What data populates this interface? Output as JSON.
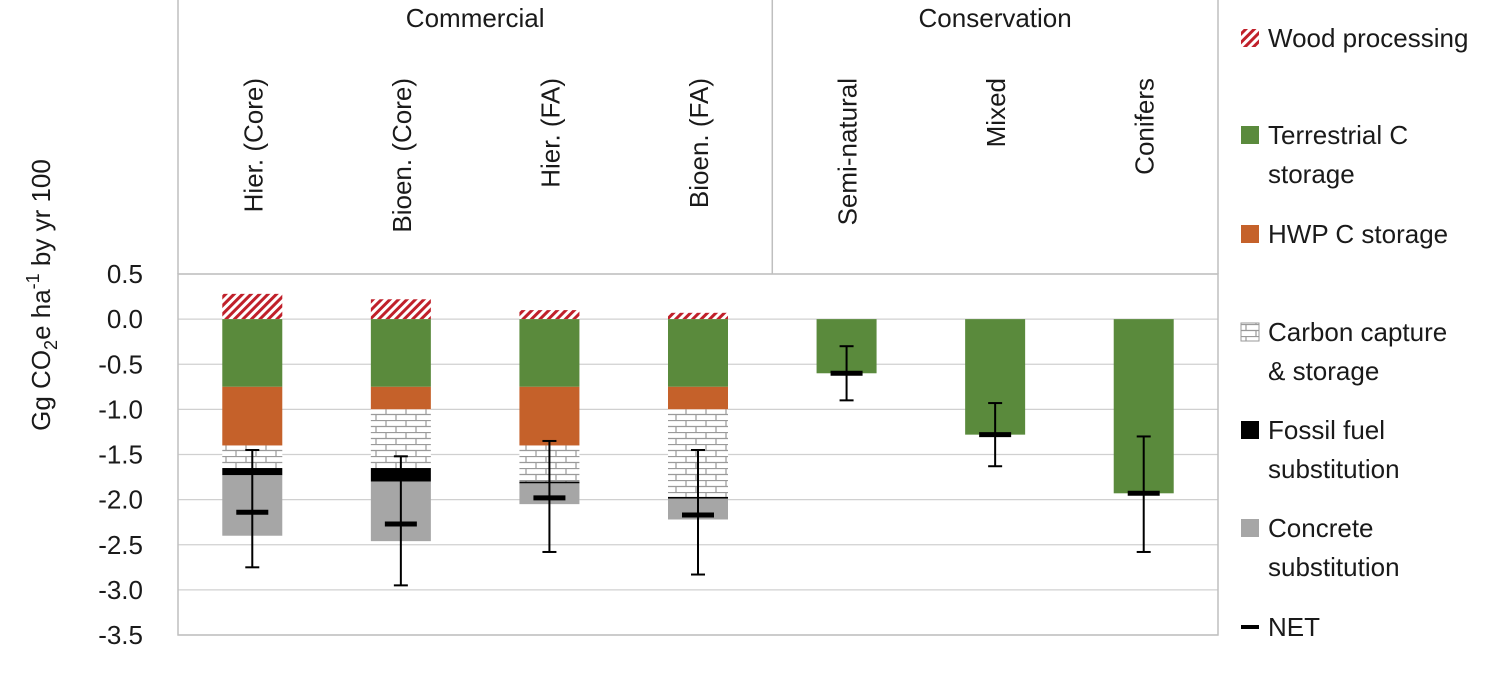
{
  "chart_data": {
    "type": "bar",
    "stacked": true,
    "ylabel": {
      "main": "Gg CO",
      "sub": "2",
      "mid": "e ha",
      "sup": "-1",
      "tail": " by yr 100"
    },
    "ylim": [
      -3.5,
      0.5
    ],
    "yticks": [
      "0.5",
      "0.0",
      "-0.5",
      "-1.0",
      "-1.5",
      "-2.0",
      "-2.5",
      "-3.0",
      "-3.5"
    ],
    "grid": true,
    "groups": [
      {
        "label": "Commercial",
        "categories": [
          0,
          1,
          2,
          3
        ]
      },
      {
        "label": "Conservation",
        "categories": [
          4,
          5,
          6
        ]
      }
    ],
    "categories": [
      "Hier. (Core)",
      "Bioen. (Core)",
      "Hier. (FA)",
      "Bioen. (FA)",
      "Semi-natural",
      "Mixed",
      "Conifers"
    ],
    "series": [
      {
        "name": "Wood processing",
        "color": "#c0202a",
        "pattern": "hatch",
        "values": [
          0.28,
          0.22,
          0.1,
          0.07,
          0,
          0,
          0
        ]
      },
      {
        "name": "Terrestrial C storage",
        "color": "#5a8a3c",
        "pattern": "solid",
        "values": [
          -0.75,
          -0.75,
          -0.75,
          -0.75,
          -0.6,
          -1.28,
          -1.93
        ]
      },
      {
        "name": "HWP C storage",
        "color": "#c5612a",
        "pattern": "solid",
        "values": [
          -0.65,
          -0.25,
          -0.65,
          -0.25,
          0,
          0,
          0
        ]
      },
      {
        "name": "Carbon capture & storage",
        "color": "#9a9a9a",
        "pattern": "brick",
        "values": [
          -0.25,
          -0.65,
          -0.4,
          -0.97,
          0,
          0,
          0
        ]
      },
      {
        "name": "Fossil fuel substitution",
        "color": "#000000",
        "pattern": "solid",
        "values": [
          -0.08,
          -0.15,
          -0.02,
          -0.02,
          0,
          0,
          0
        ]
      },
      {
        "name": "Concrete substitution",
        "color": "#a6a6a6",
        "pattern": "solid",
        "values": [
          -0.67,
          -0.66,
          -0.23,
          -0.23,
          0,
          0,
          0
        ]
      }
    ],
    "net": {
      "name": "NET",
      "values": [
        -2.14,
        -2.27,
        -1.98,
        -2.17,
        -0.6,
        -1.28,
        -1.93
      ],
      "error_low": [
        -2.75,
        -2.95,
        -2.58,
        -2.83,
        -0.9,
        -1.63,
        -2.58
      ],
      "error_high": [
        -1.45,
        -1.52,
        -1.35,
        -1.45,
        -0.3,
        -0.93,
        -1.3
      ]
    },
    "legend_position": "right",
    "legend_lines": [
      [
        "Wood processing"
      ],
      [
        "Terrestrial C",
        "storage"
      ],
      [
        "HWP C storage"
      ],
      [
        "Carbon capture",
        "& storage"
      ],
      [
        "Fossil fuel",
        "substitution"
      ],
      [
        "Concrete",
        "substitution"
      ],
      [
        "NET"
      ]
    ]
  }
}
